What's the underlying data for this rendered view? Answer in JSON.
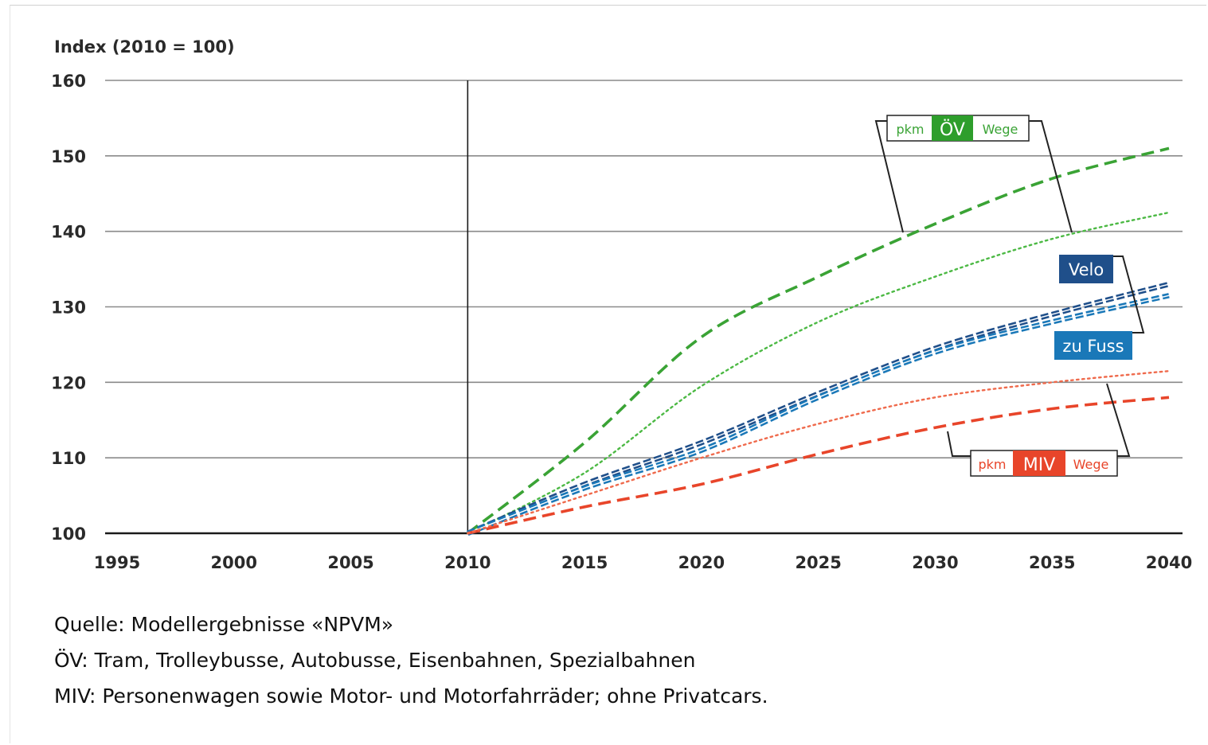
{
  "chart_data": {
    "type": "line",
    "ylabel": "Index (2010 = 100)",
    "xlabel": "",
    "xlim": [
      1995,
      2040
    ],
    "ylim": [
      100,
      160
    ],
    "x_ticks": [
      "1995",
      "2000",
      "2005",
      "2010",
      "2015",
      "2020",
      "2025",
      "2030",
      "2035",
      "2040"
    ],
    "y_ticks": [
      "100",
      "110",
      "120",
      "130",
      "140",
      "150",
      "160"
    ],
    "grid": "horizontal",
    "reference_line_x": 2010,
    "x": [
      2010,
      2015,
      2020,
      2025,
      2030,
      2035,
      2040
    ],
    "series": [
      {
        "group": "ÖV",
        "measure": "pkm",
        "style": "dashed",
        "color": "#3aa335",
        "values": [
          100,
          112,
          126,
          134,
          141,
          147,
          151
        ]
      },
      {
        "group": "ÖV",
        "measure": "Wege",
        "style": "dotted",
        "color": "#4cb944",
        "values": [
          100,
          108,
          119.5,
          128,
          134,
          139,
          142.5
        ]
      },
      {
        "name": "Velo",
        "style": "double-dashed",
        "color": "#1f4f8a",
        "values": [
          100,
          106.5,
          112,
          118.5,
          124.5,
          129,
          133
        ]
      },
      {
        "name": "zu Fuss",
        "style": "double-dashed",
        "color": "#1a78b8",
        "values": [
          100,
          106,
          111,
          118,
          124,
          128,
          131.5
        ]
      },
      {
        "group": "MIV",
        "measure": "pkm",
        "style": "dashed",
        "color": "#e8452a",
        "values": [
          100,
          103.5,
          106.5,
          110.5,
          114,
          116.5,
          118
        ]
      },
      {
        "group": "MIV",
        "measure": "Wege",
        "style": "dotted",
        "color": "#ef6a4c",
        "values": [
          100,
          105,
          110,
          114.5,
          118,
          120,
          121.5
        ]
      }
    ],
    "legend_labels": {
      "ov": {
        "left": "pkm",
        "center": "ÖV",
        "right": "Wege"
      },
      "velo": "Velo",
      "zufuss": "zu Fuss",
      "miv": {
        "left": "pkm",
        "center": "MIV",
        "right": "Wege"
      }
    }
  },
  "notes": [
    "Quelle: Modellergebnisse «NPVM»",
    "ÖV: Tram, Trolleybusse, Autobusse, Eisenbahnen, Spezialbahnen",
    "MIV: Personenwagen sowie Motor- und Motorfahrräder; ohne Privatcars."
  ],
  "colors": {
    "ov_green": "#3aa335",
    "ov_box_green": "#2e9e2c",
    "velo_blue": "#1f4f8a",
    "zufuss_blue": "#1a78b8",
    "miv_red": "#e8452a"
  }
}
